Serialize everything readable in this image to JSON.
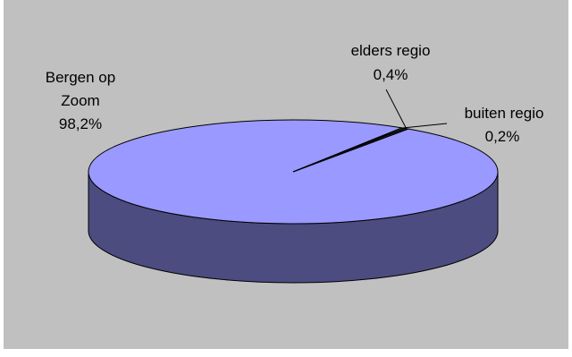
{
  "chart_data": {
    "type": "pie",
    "title": "",
    "slices": [
      {
        "label_line1": "Bergen op",
        "label_line2": "Zoom",
        "percent_label": "98,2%",
        "value": 98.2,
        "color": "#9999ff",
        "side_color": "#4c4c80"
      },
      {
        "label_line1": "elders regio",
        "percent_label": "0,4%",
        "value": 0.4,
        "color": "#1a1a1a",
        "side_color": "#0d0d0d"
      },
      {
        "label_line1": "buiten regio",
        "percent_label": "0,2%",
        "value": 0.2,
        "color": "#ccff33",
        "side_color": "#668019"
      }
    ],
    "background": "#c0c0c0",
    "three_d": true
  }
}
